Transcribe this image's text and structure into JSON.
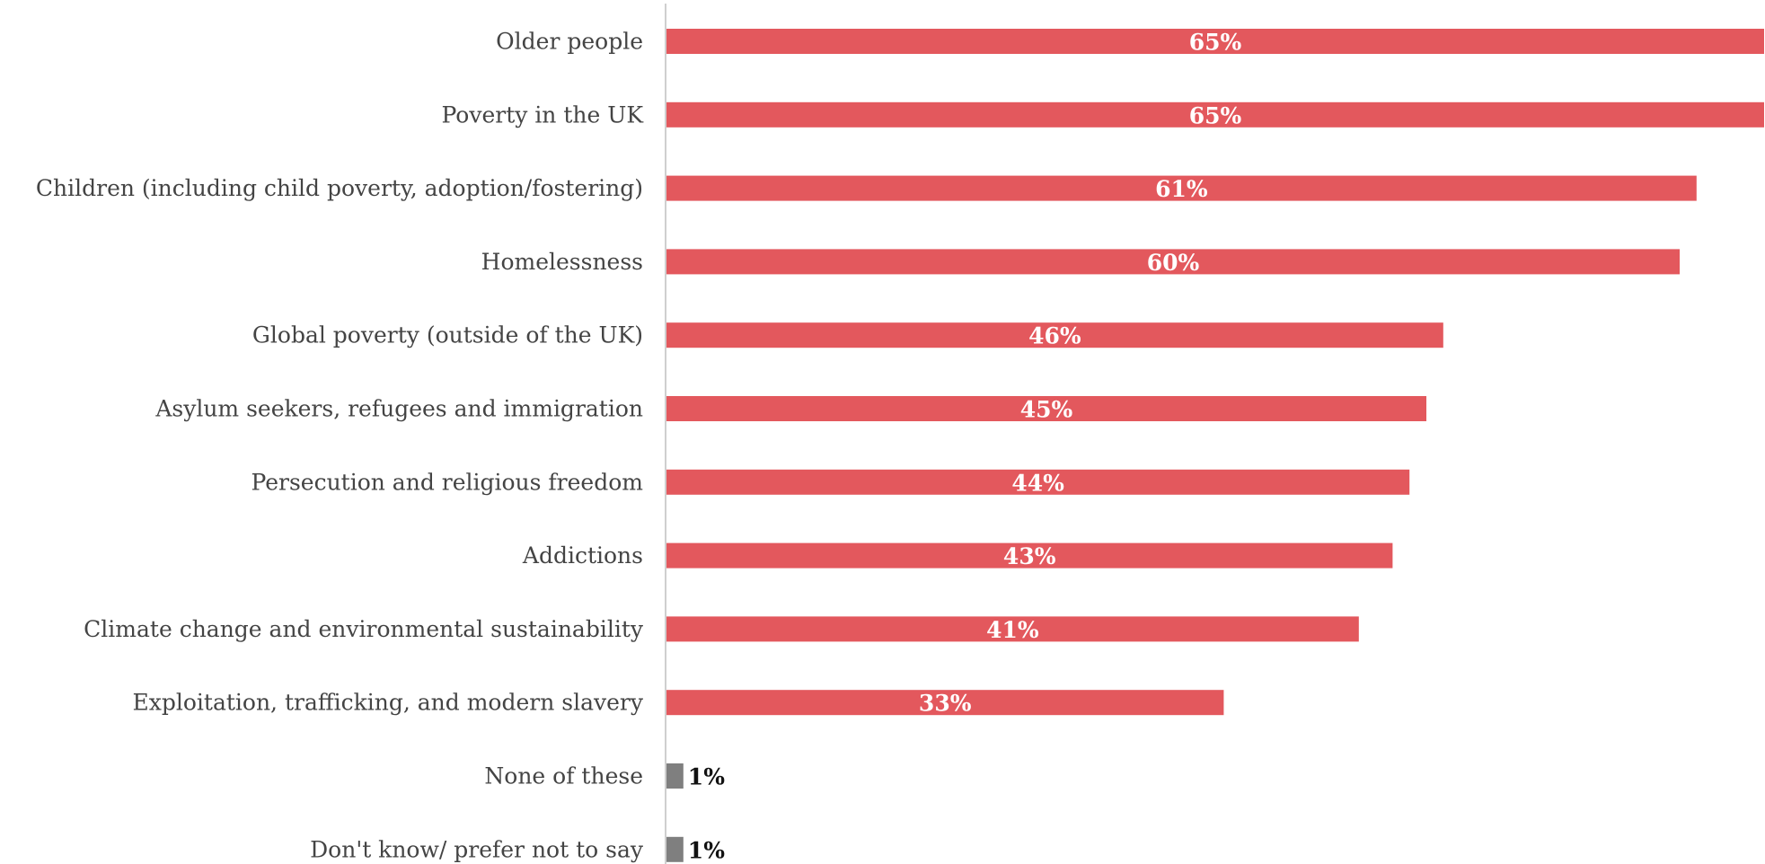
{
  "chart_data": {
    "type": "bar",
    "orientation": "horizontal",
    "title": "",
    "xlabel": "",
    "ylabel": "",
    "xlim": [
      0,
      65
    ],
    "grid": false,
    "legend": "none",
    "categories": [
      "Older people",
      "Poverty in the UK",
      "Children (including child poverty, adoption/fostering)",
      "Homelessness",
      "Global poverty (outside of the UK)",
      "Asylum seekers, refugees and immigration",
      "Persecution and religious freedom",
      "Addictions",
      "Climate change and environmental sustainability",
      "Exploitation, trafficking, and modern slavery",
      "None of these",
      "Don't know/ prefer not to say"
    ],
    "values": [
      65,
      65,
      61,
      60,
      46,
      45,
      44,
      43,
      41,
      33,
      1,
      1
    ],
    "value_labels": [
      "65%",
      "65%",
      "61%",
      "60%",
      "46%",
      "45%",
      "44%",
      "43%",
      "41%",
      "33%",
      "1%",
      "1%"
    ],
    "bar_colors": [
      "#E3585D",
      "#E3585D",
      "#E3585D",
      "#E3585D",
      "#E3585D",
      "#E3585D",
      "#E3585D",
      "#E3585D",
      "#E3585D",
      "#E3585D",
      "#7F7F7F",
      "#7F7F7F"
    ],
    "axis_line_color": "#BFBFBF"
  }
}
